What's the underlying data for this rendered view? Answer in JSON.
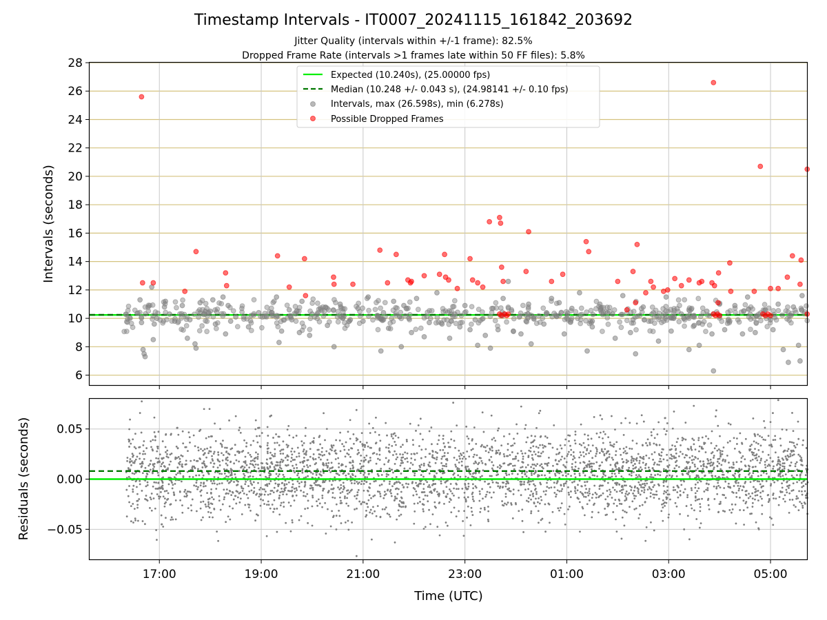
{
  "chart_data": {
    "type": "scatter",
    "title": "Timestamp Intervals - IT0007_20241115_161842_203692",
    "subtitle_lines": [
      "Jitter Quality (intervals within +/-1 frame): 82.5%",
      "Dropped Frame Rate (intervals >1 frames late within 50 FF files): 5.8%"
    ],
    "xlabel": "Time (UTC)",
    "x_tick_labels": [
      "17:00",
      "19:00",
      "21:00",
      "23:00",
      "01:00",
      "03:00",
      "05:00"
    ],
    "x_ticks_hours": [
      17,
      19,
      21,
      23,
      25,
      27,
      29
    ],
    "xlim_hours": [
      15.63,
      29.73
    ],
    "top_panel": {
      "ylabel": "Intervals (seconds)",
      "ylim": [
        5.3,
        28
      ],
      "y_ticks": [
        6,
        8,
        10,
        12,
        14,
        16,
        18,
        20,
        22,
        24,
        26,
        28
      ],
      "y_tick_labels": [
        "6",
        "8",
        "10",
        "12",
        "14",
        "16",
        "18",
        "20",
        "22",
        "24",
        "26",
        "28"
      ],
      "grid": true,
      "legend_placement": "upper-center",
      "legend": [
        {
          "label": "Expected (10.240s), (25.00000 fps)",
          "kind": "line",
          "color": "#00ee00"
        },
        {
          "label": "Median (10.248 +/- 0.043 s), (24.98141 +/- 0.10 fps)",
          "kind": "dashed",
          "color": "#007700"
        },
        {
          "label": "Intervals, max (26.598s), min (6.278s)",
          "kind": "marker",
          "color": "#808080"
        },
        {
          "label": "Possible Dropped Frames",
          "kind": "marker",
          "color": "#ff0000"
        }
      ],
      "expected_line": 10.24,
      "median_line": 10.248,
      "series": [
        {
          "name": "Intervals, max (26.598s), min (6.278s)",
          "color": "#808080",
          "points": [
            [
              16.62,
              11.3
            ],
            [
              16.65,
              9.7
            ],
            [
              16.68,
              7.8
            ],
            [
              16.7,
              7.5
            ],
            [
              16.72,
              7.3
            ],
            [
              16.78,
              10.8
            ],
            [
              16.85,
              12.2
            ],
            [
              16.88,
              8.5
            ],
            [
              16.9,
              9.6
            ],
            [
              17.1,
              10.8
            ],
            [
              17.12,
              11.2
            ],
            [
              17.3,
              9.8
            ],
            [
              17.45,
              10.9
            ],
            [
              17.55,
              8.6
            ],
            [
              17.7,
              8.2
            ],
            [
              17.72,
              7.9
            ],
            [
              17.8,
              11.1
            ],
            [
              17.9,
              10.5
            ],
            [
              18.05,
              11.3
            ],
            [
              18.1,
              9.6
            ],
            [
              18.25,
              11.5
            ],
            [
              18.3,
              8.9
            ],
            [
              18.35,
              10.9
            ],
            [
              18.5,
              10.1
            ],
            [
              18.75,
              9.4
            ],
            [
              18.95,
              10.4
            ],
            [
              19.3,
              11.5
            ],
            [
              19.35,
              8.3
            ],
            [
              19.4,
              9.1
            ],
            [
              19.55,
              10.6
            ],
            [
              19.75,
              9.0
            ],
            [
              19.8,
              11.2
            ],
            [
              19.95,
              8.8
            ],
            [
              20.1,
              10.3
            ],
            [
              20.3,
              9.5
            ],
            [
              20.43,
              8.0
            ],
            [
              20.55,
              11.0
            ],
            [
              20.75,
              9.9
            ],
            [
              20.9,
              10.7
            ],
            [
              21.1,
              11.5
            ],
            [
              21.3,
              10.1
            ],
            [
              21.35,
              7.7
            ],
            [
              21.5,
              9.3
            ],
            [
              21.6,
              11.2
            ],
            [
              21.75,
              8.0
            ],
            [
              21.8,
              10.9
            ],
            [
              21.95,
              9.0
            ],
            [
              22.05,
              11.4
            ],
            [
              22.2,
              8.7
            ],
            [
              22.45,
              11.8
            ],
            [
              22.55,
              9.6
            ],
            [
              22.7,
              8.6
            ],
            [
              22.9,
              9.4
            ],
            [
              23.0,
              10.9
            ],
            [
              23.1,
              9.2
            ],
            [
              23.25,
              8.1
            ],
            [
              23.4,
              8.8
            ],
            [
              23.5,
              7.9
            ],
            [
              23.55,
              10.7
            ],
            [
              23.65,
              9.2
            ],
            [
              23.75,
              11.4
            ],
            [
              23.85,
              12.6
            ],
            [
              23.95,
              9.1
            ],
            [
              24.1,
              8.9
            ],
            [
              24.25,
              11.0
            ],
            [
              24.3,
              8.2
            ],
            [
              24.35,
              10.1
            ],
            [
              24.55,
              9.6
            ],
            [
              24.7,
              11.4
            ],
            [
              24.85,
              11.1
            ],
            [
              24.95,
              8.9
            ],
            [
              25.1,
              10.7
            ],
            [
              25.25,
              11.8
            ],
            [
              25.4,
              7.7
            ],
            [
              25.5,
              9.4
            ],
            [
              25.65,
              11.0
            ],
            [
              25.8,
              10.4
            ],
            [
              25.95,
              8.6
            ],
            [
              26.1,
              11.6
            ],
            [
              26.25,
              9.0
            ],
            [
              26.35,
              7.5
            ],
            [
              26.5,
              10.8
            ],
            [
              26.65,
              9.8
            ],
            [
              26.8,
              8.4
            ],
            [
              26.95,
              11.5
            ],
            [
              27.05,
              9.1
            ],
            [
              27.25,
              10.3
            ],
            [
              27.4,
              7.8
            ],
            [
              27.5,
              9.5
            ],
            [
              27.6,
              8.1
            ],
            [
              27.75,
              10.5
            ],
            [
              27.85,
              8.9
            ],
            [
              27.88,
              6.3
            ],
            [
              28.0,
              11.0
            ],
            [
              28.1,
              9.2
            ],
            [
              28.3,
              10.9
            ],
            [
              28.45,
              8.9
            ],
            [
              28.55,
              11.5
            ],
            [
              28.7,
              9.0
            ],
            [
              28.9,
              10.6
            ],
            [
              29.05,
              9.2
            ],
            [
              29.15,
              11.0
            ],
            [
              29.25,
              7.8
            ],
            [
              29.35,
              6.9
            ],
            [
              29.45,
              10.8
            ],
            [
              29.55,
              8.1
            ],
            [
              29.58,
              7.0
            ],
            [
              29.62,
              11.6
            ],
            [
              16.95,
              10.0
            ],
            [
              17.2,
              10.3
            ],
            [
              17.6,
              9.9
            ],
            [
              18.0,
              10.5
            ],
            [
              18.4,
              9.8
            ],
            [
              18.8,
              10.2
            ],
            [
              19.2,
              10.4
            ],
            [
              19.6,
              9.9
            ],
            [
              20.0,
              10.3
            ],
            [
              20.6,
              10.0
            ],
            [
              21.0,
              9.8
            ],
            [
              21.4,
              10.4
            ],
            [
              21.9,
              10.0
            ],
            [
              22.3,
              9.7
            ],
            [
              22.8,
              10.3
            ],
            [
              23.2,
              9.9
            ],
            [
              23.7,
              10.2
            ],
            [
              24.2,
              9.8
            ],
            [
              24.6,
              10.4
            ],
            [
              25.0,
              10.0
            ],
            [
              25.5,
              9.8
            ],
            [
              25.9,
              10.3
            ],
            [
              26.3,
              9.9
            ],
            [
              26.7,
              10.4
            ],
            [
              27.1,
              10.0
            ],
            [
              27.5,
              10.2
            ],
            [
              28.2,
              9.8
            ],
            [
              28.6,
              10.3
            ],
            [
              29.0,
              9.9
            ],
            [
              29.4,
              10.2
            ]
          ]
        },
        {
          "name": "Possible Dropped Frames",
          "color": "#ff0000",
          "points": [
            [
              16.65,
              25.6
            ],
            [
              16.67,
              12.5
            ],
            [
              16.88,
              12.5
            ],
            [
              17.72,
              14.7
            ],
            [
              17.5,
              11.9
            ],
            [
              18.3,
              13.2
            ],
            [
              18.32,
              12.3
            ],
            [
              19.32,
              14.4
            ],
            [
              19.55,
              12.2
            ],
            [
              19.85,
              14.2
            ],
            [
              19.87,
              11.6
            ],
            [
              20.42,
              12.9
            ],
            [
              20.43,
              12.4
            ],
            [
              20.8,
              12.4
            ],
            [
              21.33,
              14.8
            ],
            [
              21.48,
              12.5
            ],
            [
              21.65,
              14.5
            ],
            [
              21.88,
              12.7
            ],
            [
              21.95,
              12.6
            ],
            [
              21.93,
              12.5
            ],
            [
              22.2,
              13.0
            ],
            [
              22.5,
              13.1
            ],
            [
              22.6,
              14.5
            ],
            [
              22.62,
              12.9
            ],
            [
              22.68,
              12.7
            ],
            [
              22.85,
              12.1
            ],
            [
              23.1,
              14.2
            ],
            [
              23.15,
              12.7
            ],
            [
              23.25,
              12.5
            ],
            [
              23.35,
              12.2
            ],
            [
              23.48,
              16.8
            ],
            [
              23.68,
              17.1
            ],
            [
              23.7,
              16.7
            ],
            [
              23.72,
              13.6
            ],
            [
              23.75,
              12.6
            ],
            [
              24.2,
              13.3
            ],
            [
              24.25,
              16.1
            ],
            [
              24.7,
              12.6
            ],
            [
              24.92,
              13.1
            ],
            [
              25.38,
              15.4
            ],
            [
              25.43,
              14.7
            ],
            [
              26.0,
              12.6
            ],
            [
              26.18,
              10.6
            ],
            [
              26.3,
              13.3
            ],
            [
              26.38,
              15.2
            ],
            [
              26.35,
              11.1
            ],
            [
              26.55,
              11.8
            ],
            [
              26.65,
              12.6
            ],
            [
              26.7,
              12.2
            ],
            [
              26.9,
              11.9
            ],
            [
              26.98,
              12.0
            ],
            [
              27.12,
              12.8
            ],
            [
              27.25,
              12.3
            ],
            [
              27.4,
              12.7
            ],
            [
              27.6,
              12.5
            ],
            [
              27.65,
              12.6
            ],
            [
              27.88,
              26.6
            ],
            [
              27.85,
              12.5
            ],
            [
              27.9,
              12.3
            ],
            [
              27.98,
              13.2
            ],
            [
              27.97,
              11.1
            ],
            [
              28.2,
              13.9
            ],
            [
              28.22,
              11.9
            ],
            [
              28.68,
              11.9
            ],
            [
              28.8,
              20.7
            ],
            [
              29.0,
              12.1
            ],
            [
              29.15,
              12.1
            ],
            [
              29.33,
              12.9
            ],
            [
              29.43,
              14.4
            ],
            [
              29.6,
              14.1
            ],
            [
              29.58,
              12.4
            ],
            [
              29.72,
              20.5
            ],
            [
              29.72,
              10.3
            ],
            [
              23.68,
              10.3
            ],
            [
              23.72,
              10.2
            ],
            [
              23.78,
              10.3
            ],
            [
              23.82,
              10.2
            ],
            [
              23.85,
              10.3
            ],
            [
              27.88,
              10.3
            ],
            [
              27.92,
              10.2
            ],
            [
              27.96,
              10.3
            ],
            [
              28.0,
              10.2
            ],
            [
              28.85,
              10.3
            ],
            [
              28.9,
              10.2
            ],
            [
              28.95,
              10.3
            ],
            [
              29.0,
              10.2
            ]
          ]
        }
      ]
    },
    "bottom_panel": {
      "ylabel": "Residuals (seconds)",
      "ylim": [
        -0.08,
        0.08
      ],
      "y_ticks": [
        0.05,
        0.0,
        -0.05
      ],
      "y_tick_labels": [
        "0.05",
        "0.00",
        "−0.05"
      ],
      "grid": true,
      "expected_line": 0.0,
      "median_line": 0.008,
      "series": [
        {
          "name": "Residuals",
          "color": "#7f7f7f",
          "x_start": 16.35,
          "x_end": 29.73,
          "count": 3400,
          "mean": 0.006,
          "spread": 0.022
        }
      ]
    }
  }
}
